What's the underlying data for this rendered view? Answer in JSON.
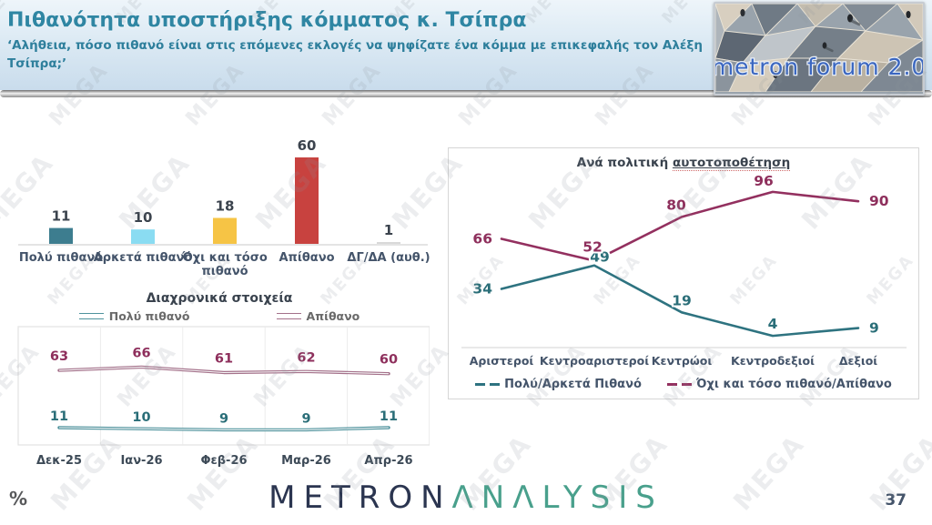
{
  "header": {
    "title": "Πιθανότητα υποστήριξης κόμματος κ. Τσίπρα",
    "subtitle": "‘Αλήθεια, πόσο πιθανό είναι στις επόμενες εκλογές να ψηφίζατε ένα κόμμα με επικεφαλής τον Αλέξη Τσίπρα;’",
    "logo_text": "metron forum 2.0"
  },
  "watermark": "MEGA",
  "colors": {
    "header_text": "#2f86a3",
    "teal_series": "#2a6e78",
    "maroon_series": "#8e2f5c",
    "axis_text": "#44546a",
    "brand_navy": "#2b3550",
    "brand_teal": "#49a08c"
  },
  "chart_data": [
    {
      "type": "bar",
      "title": "",
      "categories": [
        "Πολύ πιθανό",
        "Αρκετά πιθανό",
        "Όχι και τόσο\nπιθανό",
        "Απίθανο",
        "ΔΓ/ΔΑ (αυθ.)"
      ],
      "values": [
        11,
        10,
        18,
        60,
        1
      ],
      "bar_colors": [
        "#3d7d8f",
        "#8adcf2",
        "#f6c445",
        "#c8423f",
        "#d9d9d9"
      ],
      "ylim": [
        0,
        65
      ],
      "data_labels": true,
      "grid": false
    },
    {
      "type": "line",
      "title_prefix": "Ανά πολιτική ",
      "title_underlined": "αυτοτοποθέτηση",
      "categories": [
        "Αριστεροί",
        "Κεντροαριστεροί",
        "Κεντρώοι",
        "Κεντροδεξιοί",
        "Δεξιοί"
      ],
      "series": [
        {
          "name": "Πολύ/Αρκετά Πιθανό",
          "values": [
            34,
            49,
            19,
            4,
            9
          ],
          "color": "#2a6e78",
          "line_color": "#2e7380"
        },
        {
          "name": "Όχι και τόσο πιθανό/Απίθανο",
          "values": [
            66,
            52,
            80,
            96,
            90
          ],
          "color": "#8e2f5c",
          "line_color": "#93305f"
        }
      ],
      "ylim": [
        0,
        100
      ],
      "legend_position": "bottom",
      "grid": false
    },
    {
      "type": "line",
      "title": "Διαχρονικά στοιχεία",
      "categories": [
        "Δεκ-25",
        "Ιαν-26",
        "Φεβ-26",
        "Μαρ-26",
        "Απρ-26"
      ],
      "series": [
        {
          "name": "Πολύ πιθανό",
          "values": [
            11,
            10,
            9,
            9,
            11
          ],
          "color": "#2a6e78",
          "line_color": "#4f939d"
        },
        {
          "name": "Απίθανο",
          "values": [
            63,
            66,
            61,
            62,
            60
          ],
          "color": "#8e2f5c",
          "line_color": "#a4718a"
        }
      ],
      "ylim": [
        0,
        80
      ],
      "legend_position": "top",
      "grid": "vertical"
    }
  ],
  "footer": {
    "percent_symbol": "%",
    "brand_primary": "METRON",
    "brand_secondary": "ΛNΛLYSIS",
    "page_number": "37"
  }
}
